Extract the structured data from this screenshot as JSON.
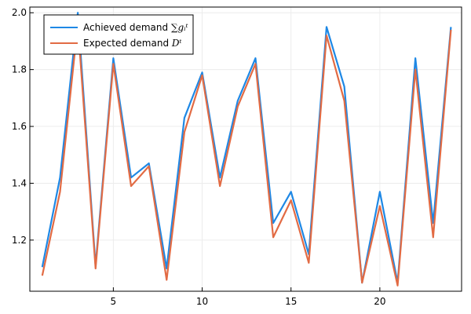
{
  "chart_data": {
    "type": "line",
    "title": "",
    "xlabel": "",
    "ylabel": "",
    "xlim": [
      0.3,
      24.6
    ],
    "ylim": [
      1.02,
      2.02
    ],
    "xticks": [
      5,
      10,
      15,
      20
    ],
    "yticks": [
      1.2,
      1.4,
      1.6,
      1.8,
      2.0
    ],
    "xtick_labels": [
      "5",
      "10",
      "15",
      "20"
    ],
    "ytick_labels": [
      "1.2",
      "1.4",
      "1.6",
      "1.8",
      "2.0"
    ],
    "grid": true,
    "legend_position": "top-left",
    "x": [
      1,
      2,
      3,
      4,
      5,
      6,
      7,
      8,
      9,
      10,
      11,
      12,
      13,
      14,
      15,
      16,
      17,
      18,
      19,
      20,
      21,
      22,
      23,
      24
    ],
    "series": [
      {
        "name": "Achieved demand",
        "legend_symbol": "∑gᵢᵗ",
        "color": "#1e88e5",
        "values": [
          1.105,
          1.42,
          2.0,
          1.11,
          1.84,
          1.42,
          1.47,
          1.1,
          1.63,
          1.79,
          1.42,
          1.69,
          1.84,
          1.26,
          1.37,
          1.15,
          1.95,
          1.74,
          1.05,
          1.37,
          1.05,
          1.84,
          1.26,
          1.95
        ]
      },
      {
        "name": "Expected demand",
        "legend_symbol": "Dᵗ",
        "color": "#e26b44",
        "values": [
          1.075,
          1.37,
          1.96,
          1.1,
          1.82,
          1.39,
          1.46,
          1.06,
          1.58,
          1.78,
          1.39,
          1.67,
          1.82,
          1.21,
          1.34,
          1.12,
          1.92,
          1.69,
          1.05,
          1.32,
          1.04,
          1.8,
          1.21,
          1.94
        ]
      }
    ]
  }
}
